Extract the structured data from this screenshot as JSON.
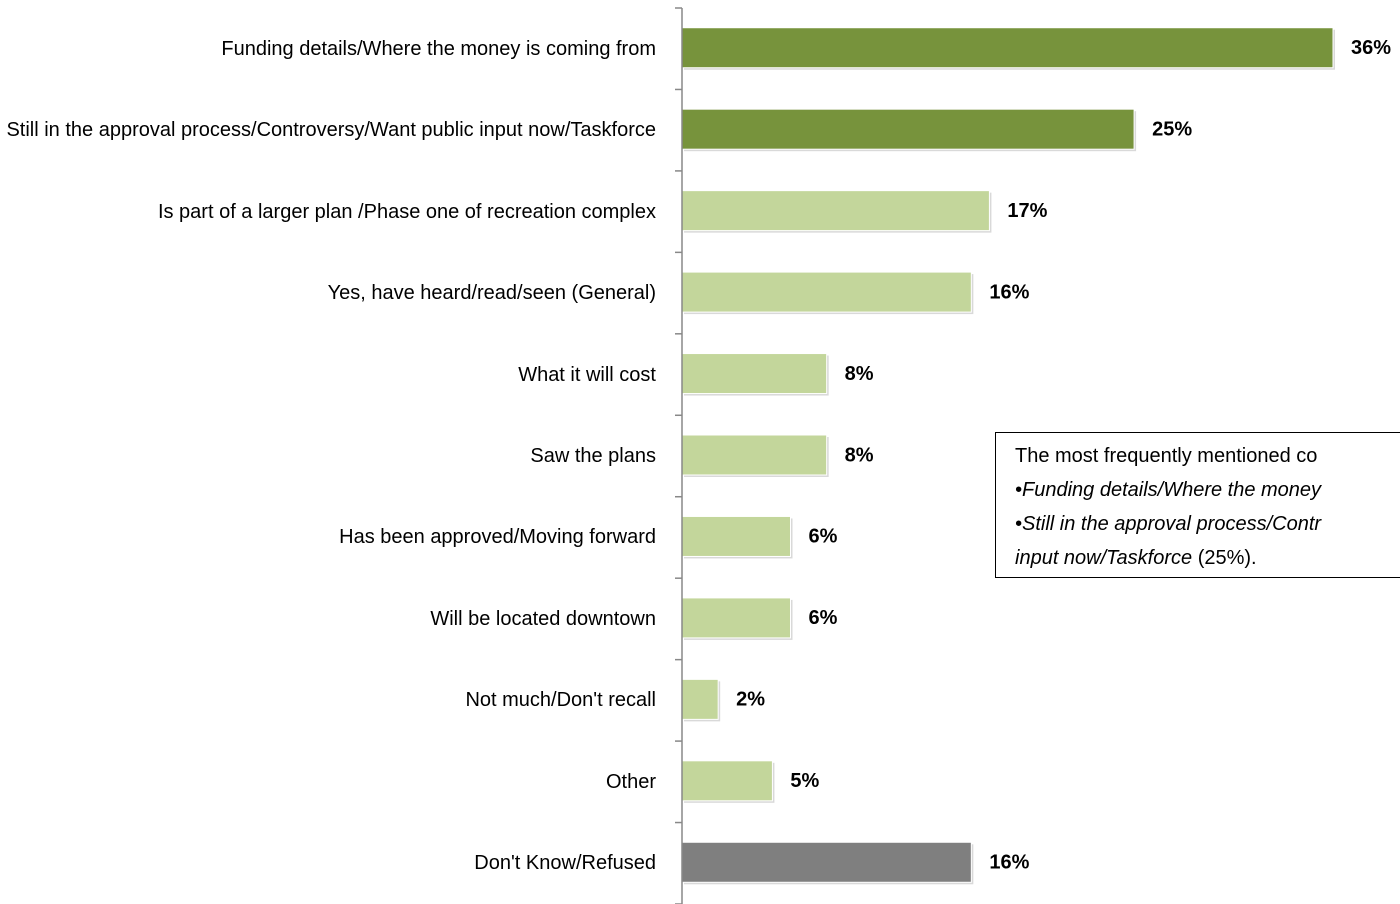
{
  "chart_data": {
    "type": "bar",
    "orientation": "horizontal",
    "categories": [
      "Funding details/Where the money is coming from",
      "Still in the approval process/Controversy/Want public input now/Taskforce",
      "Is part of a larger plan /Phase one of recreation complex",
      "Yes, have heard/read/seen (General)",
      "What it will cost",
      "Saw the plans",
      "Has been approved/Moving forward",
      "Will be located downtown",
      "Not much/Don't recall",
      "Other",
      "Don't Know/Refused"
    ],
    "values": [
      36,
      25,
      17,
      16,
      8,
      8,
      6,
      6,
      2,
      5,
      16
    ],
    "value_labels": [
      "36%",
      "25%",
      "17%",
      "16%",
      "8%",
      "8%",
      "6%",
      "6%",
      "2%",
      "5%",
      "16%"
    ],
    "colors": [
      "#77933c",
      "#77933c",
      "#c3d69b",
      "#c3d69b",
      "#c3d69b",
      "#c3d69b",
      "#c3d69b",
      "#c3d69b",
      "#c3d69b",
      "#c3d69b",
      "#7f7f7f"
    ],
    "annotation": {
      "line1": "The most frequently mentioned co",
      "line2": "•Funding details/Where the money",
      "line3": "•Still in the approval process/Contr",
      "line4_italic": "input now/Taskforce",
      "line4_rest": " (25%)."
    }
  }
}
